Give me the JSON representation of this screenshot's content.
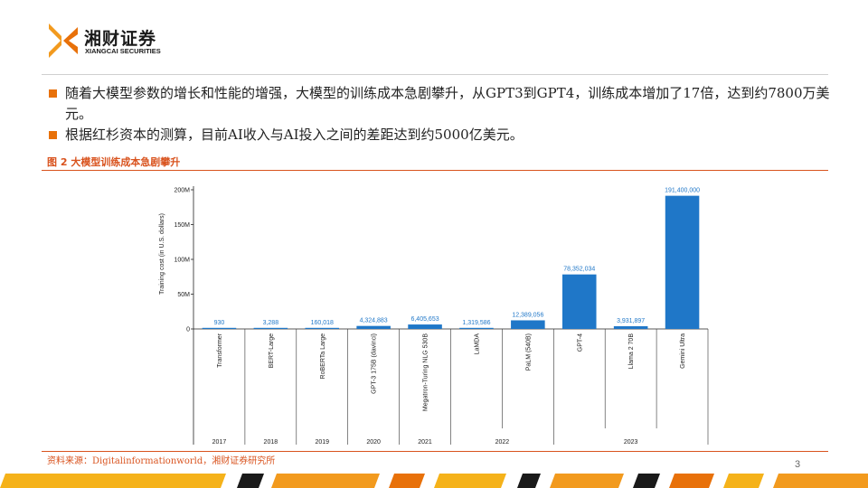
{
  "header": {
    "logo_cn": "湘财证券",
    "logo_en": "XIANGCAI SECURITIES"
  },
  "bullets": [
    "随着大模型参数的增长和性能的增强，大模型的训练成本急剧攀升，从GPT3到GPT4，训练成本增加了17倍，达到约7800万美元。",
    "根据红杉资本的测算，目前AI收入与AI投入之间的差距达到约5000亿美元。"
  ],
  "figure_title": "图 2 大模型训练成本急剧攀升",
  "source": "资料来源：Digitalinformationworld，湘财证券研究所",
  "page_number": "3",
  "colors": {
    "bar": "#1f77c8",
    "accent": "#e8710a",
    "caption": "#d9531e"
  },
  "chart_data": {
    "type": "bar",
    "ylabel": "Training cost (in U.S. dollars)",
    "ylim": [
      0,
      200000000
    ],
    "yticks": [
      {
        "value": 0,
        "label": "0"
      },
      {
        "value": 50000000,
        "label": "50M"
      },
      {
        "value": 100000000,
        "label": "100M"
      },
      {
        "value": 150000000,
        "label": "150M"
      },
      {
        "value": 200000000,
        "label": "200M"
      }
    ],
    "categories": [
      "Transformer",
      "BERT-Large",
      "RoBERTa Large",
      "GPT-3 175B (davinci)",
      "Megatron-Turing NLG 530B",
      "LaMDA",
      "PaLM (540B)",
      "GPT-4",
      "Llama 2 70B",
      "Gemini Ultra"
    ],
    "values": [
      930,
      3288,
      160018,
      4324883,
      6405653,
      1319586,
      12389056,
      78352034,
      3931897,
      191400000
    ],
    "value_labels": [
      "930",
      "3,288",
      "160,018",
      "4,324,883",
      "6,405,653",
      "1,319,586",
      "12,389,056",
      "78,352,034",
      "3,931,897",
      "191,400,000"
    ],
    "years": [
      {
        "label": "2017",
        "span": 1
      },
      {
        "label": "2018",
        "span": 1
      },
      {
        "label": "2019",
        "span": 1
      },
      {
        "label": "2020",
        "span": 1
      },
      {
        "label": "2021",
        "span": 1
      },
      {
        "label": "2022",
        "span": 2
      },
      {
        "label": "2023",
        "span": 3
      }
    ],
    "grid": false
  }
}
